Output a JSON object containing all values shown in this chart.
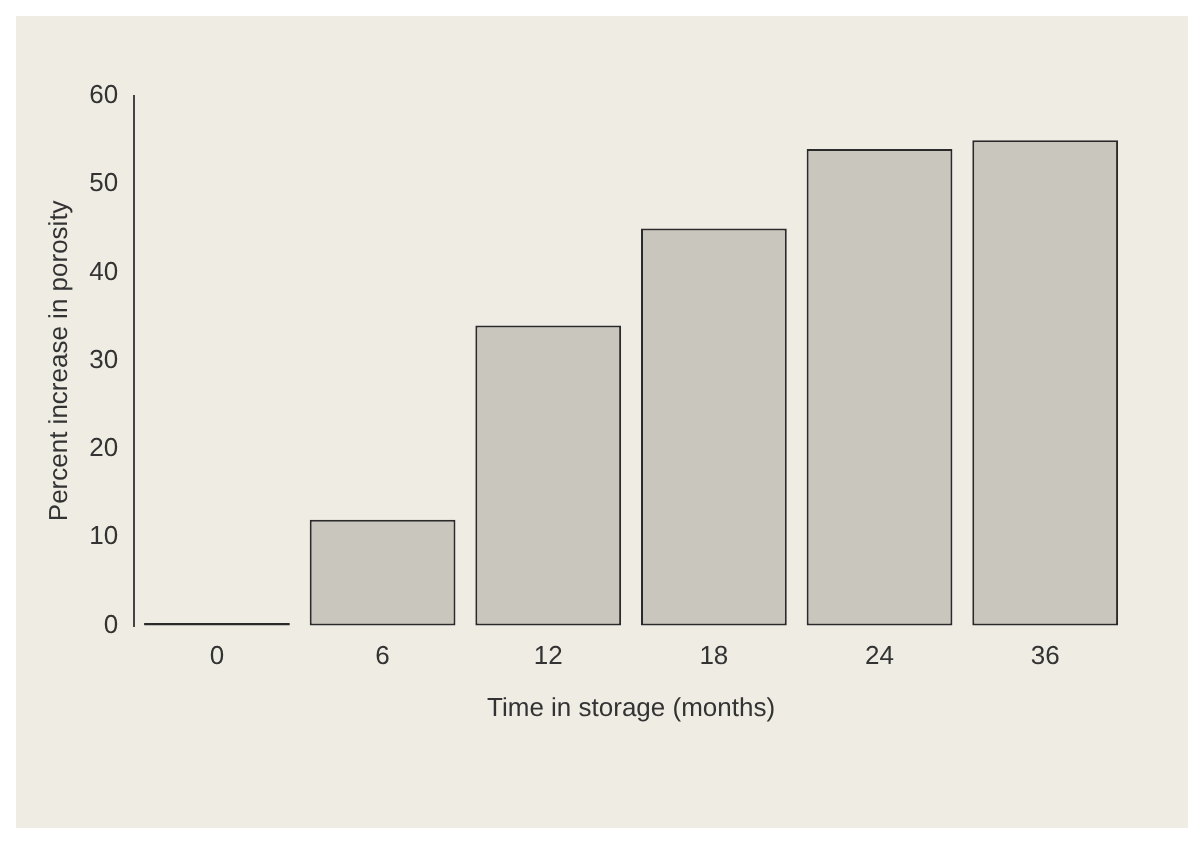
{
  "chart_data": {
    "type": "bar",
    "xlabel": "Time in storage (months)",
    "ylabel": "Percent increase in porosity",
    "categories": [
      "0",
      "6",
      "12",
      "18",
      "24",
      "36"
    ],
    "values": [
      0.3,
      12,
      34,
      45,
      54,
      55
    ],
    "colors": [
      "#2a2a2a",
      "#c9c6bd",
      "#c9c6bd",
      "#c9c6bd",
      "#c9c6bd",
      "#c9c6bd"
    ],
    "ylim": [
      0,
      60
    ],
    "yticks": [
      0,
      10,
      20,
      30,
      40,
      50,
      60
    ],
    "grid": false,
    "legend": false
  }
}
